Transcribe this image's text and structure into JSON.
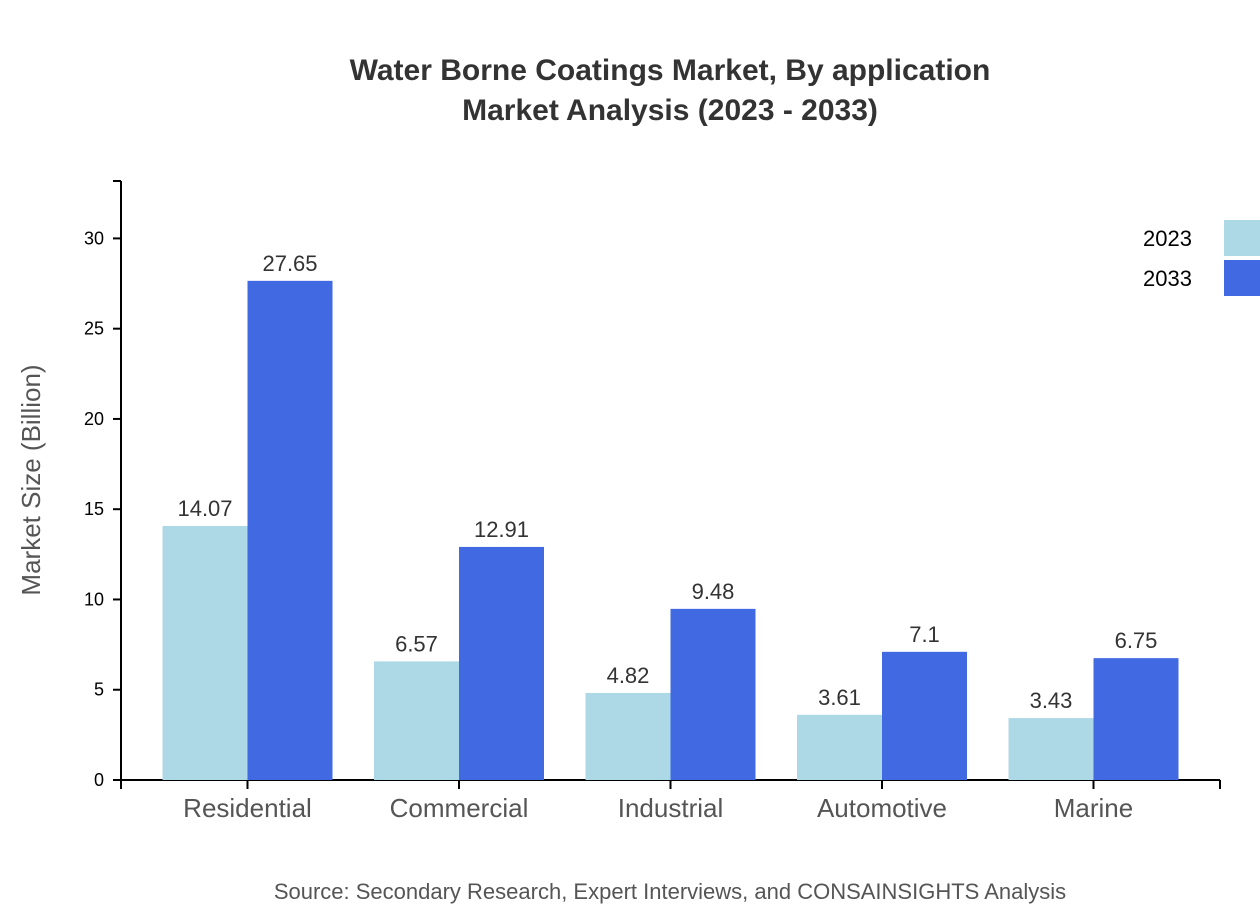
{
  "chart_data": {
    "type": "bar",
    "title": [
      "Water Borne Coatings Market, By application",
      "Market Analysis (2023 - 2033)"
    ],
    "xlabel": "",
    "ylabel": "Market Size (Billion)",
    "categories": [
      "Residential",
      "Commercial",
      "Industrial",
      "Automotive",
      "Marine"
    ],
    "series": [
      {
        "name": "2023",
        "color": "#ADD8E6",
        "values": [
          14.07,
          6.57,
          4.82,
          3.61,
          3.43
        ]
      },
      {
        "name": "2033",
        "color": "#4169E1",
        "values": [
          27.65,
          12.91,
          9.48,
          7.1,
          6.75
        ]
      }
    ],
    "ylim": [
      0,
      33.18
    ],
    "yticks": [
      0,
      5,
      10,
      15,
      20,
      25,
      30
    ],
    "grid": false,
    "legend": "top-right",
    "source": "Source: Secondary Research, Expert Interviews, and CONSAINSIGHTS Analysis"
  }
}
